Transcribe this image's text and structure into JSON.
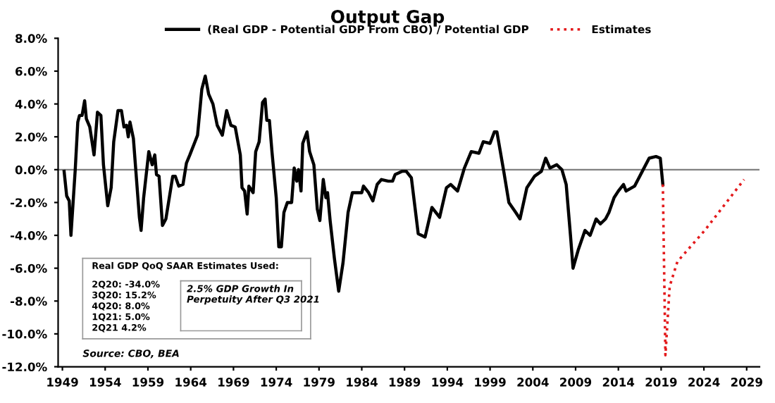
{
  "chart_data": {
    "type": "line",
    "title": "Output Gap",
    "series": [
      {
        "name": "(Real GDP - Potential GDP From CBO) / Potential GDP",
        "color": "#000000",
        "line_style": "solid",
        "x": [
          1949.2,
          1949.5,
          1949.8,
          1950.0,
          1950.5,
          1950.8,
          1951.0,
          1951.3,
          1951.6,
          1951.8,
          1952.2,
          1952.7,
          1953.1,
          1953.5,
          1953.8,
          1954.3,
          1954.7,
          1955.0,
          1955.5,
          1955.9,
          1956.2,
          1956.5,
          1956.7,
          1956.9,
          1957.3,
          1958.0,
          1958.2,
          1958.5,
          1959.1,
          1959.5,
          1959.8,
          1960.0,
          1960.3,
          1960.7,
          1961.1,
          1961.9,
          1962.2,
          1962.6,
          1963.1,
          1963.5,
          1963.9,
          1964.5,
          1964.8,
          1965.3,
          1965.7,
          1966.1,
          1966.6,
          1967.1,
          1967.7,
          1968.2,
          1968.7,
          1969.2,
          1969.8,
          1970.0,
          1970.3,
          1970.6,
          1970.8,
          1971.3,
          1971.6,
          1972.0,
          1972.4,
          1972.7,
          1972.9,
          1973.2,
          1973.5,
          1974.0,
          1974.3,
          1974.6,
          1974.9,
          1975.3,
          1975.8,
          1976.1,
          1976.4,
          1976.6,
          1976.9,
          1977.1,
          1977.6,
          1977.9,
          1978.4,
          1978.8,
          1979.1,
          1979.5,
          1979.8,
          1980.0,
          1980.3,
          1980.8,
          1981.3,
          1981.8,
          1982.4,
          1982.9,
          1984.0,
          1984.2,
          1984.8,
          1985.3,
          1985.8,
          1986.3,
          1987.1,
          1987.6,
          1987.9,
          1988.7,
          1989.2,
          1989.8,
          1990.6,
          1991.4,
          1992.2,
          1993.1,
          1993.9,
          1994.4,
          1995.2,
          1996.0,
          1996.8,
          1997.7,
          1998.2,
          1999.0,
          1999.5,
          1999.8,
          2000.2,
          2000.6,
          2001.2,
          2002.0,
          2002.5,
          2003.3,
          2004.2,
          2005.0,
          2005.5,
          2006.0,
          2006.8,
          2007.4,
          2007.9,
          2008.4,
          2008.7,
          2009.3,
          2010.1,
          2010.7,
          2011.4,
          2011.9,
          2012.5,
          2012.9,
          2013.5,
          2014.0,
          2014.6,
          2014.9,
          2015.9,
          2016.8,
          2017.6,
          2018.4,
          2018.9,
          2019.2
        ],
        "values": [
          -0.1,
          -1.6,
          -1.9,
          -4.0,
          0.0,
          2.9,
          3.3,
          3.3,
          4.2,
          3.1,
          2.6,
          0.9,
          3.5,
          3.3,
          0.3,
          -2.2,
          -1.1,
          1.7,
          3.6,
          3.6,
          2.6,
          2.7,
          2.0,
          2.9,
          1.9,
          -2.9,
          -3.7,
          -1.7,
          1.1,
          0.3,
          0.9,
          -0.3,
          -0.4,
          -3.4,
          -3.0,
          -0.4,
          -0.4,
          -1.0,
          -0.9,
          0.4,
          0.9,
          1.7,
          2.1,
          4.9,
          5.7,
          4.6,
          4.0,
          2.7,
          2.1,
          3.6,
          2.7,
          2.6,
          0.9,
          -1.1,
          -1.3,
          -2.7,
          -1.0,
          -1.4,
          1.1,
          1.7,
          4.1,
          4.3,
          3.0,
          3.0,
          1.1,
          -1.7,
          -4.7,
          -4.7,
          -2.6,
          -2.0,
          -2.0,
          0.1,
          -0.7,
          0.0,
          -1.3,
          1.6,
          2.3,
          1.1,
          0.3,
          -2.4,
          -3.1,
          -0.6,
          -1.7,
          -1.4,
          -3.1,
          -5.4,
          -7.4,
          -5.7,
          -2.6,
          -1.4,
          -1.4,
          -1.0,
          -1.4,
          -1.9,
          -0.9,
          -0.6,
          -0.7,
          -0.7,
          -0.3,
          -0.1,
          -0.1,
          -0.5,
          -3.9,
          -4.1,
          -2.3,
          -2.9,
          -1.1,
          -0.9,
          -1.3,
          0.1,
          1.1,
          1.0,
          1.7,
          1.6,
          2.3,
          2.3,
          1.1,
          -0.1,
          -2.0,
          -2.6,
          -3.0,
          -1.1,
          -0.4,
          -0.1,
          0.7,
          0.1,
          0.3,
          0.0,
          -0.9,
          -4.0,
          -6.0,
          -4.9,
          -3.7,
          -4.0,
          -3.0,
          -3.3,
          -3.0,
          -2.6,
          -1.7,
          -1.3,
          -0.9,
          -1.3,
          -1.0,
          -0.1,
          0.7,
          0.8,
          0.7,
          -0.9
        ]
      },
      {
        "name": "Estimates",
        "color": "#e31a1c",
        "line_style": "dotted",
        "x": [
          2019.2,
          2019.5,
          2020.0,
          2020.9,
          2024.1,
          2028.7
        ],
        "values": [
          -0.9,
          -11.3,
          -7.1,
          -5.6,
          -3.7,
          -0.6
        ]
      }
    ],
    "xlim": [
      1948.5,
      2030.5
    ],
    "xticks": [
      1949,
      1954,
      1959,
      1964,
      1969,
      1974,
      1979,
      1984,
      1989,
      1994,
      1999,
      2004,
      2009,
      2014,
      2019,
      2024,
      2029
    ],
    "ylim": [
      -12,
      8
    ],
    "yticks": [
      {
        "value": -12,
        "label": "-12.0%"
      },
      {
        "value": -10,
        "label": "-10.0%"
      },
      {
        "value": -8,
        "label": "-8.0%"
      },
      {
        "value": -6,
        "label": "-6.0%"
      },
      {
        "value": -4,
        "label": "-4.0%"
      },
      {
        "value": -2,
        "label": "-2.0%"
      },
      {
        "value": 0,
        "label": "0.0%"
      },
      {
        "value": 2,
        "label": "2.0%"
      },
      {
        "value": 4,
        "label": "4.0%"
      },
      {
        "value": 6,
        "label": "6.0%"
      },
      {
        "value": 8,
        "label": "8.0%"
      }
    ],
    "ref_lines": [
      {
        "axis": "y",
        "value": 0,
        "label": null,
        "color": "#808080"
      }
    ],
    "grid": false,
    "legend": "top",
    "annotations": [
      "Real GDP QoQ SAAR Estimates Used:",
      "2Q20: -34.0%",
      "3Q20: 15.2%",
      "4Q20: 8.0%",
      "1Q21: 5.0%",
      "2Q21 4.2%",
      "2.5% GDP Growth In Perpetuity After Q3 2021",
      "Source: CBO, BEA"
    ]
  }
}
